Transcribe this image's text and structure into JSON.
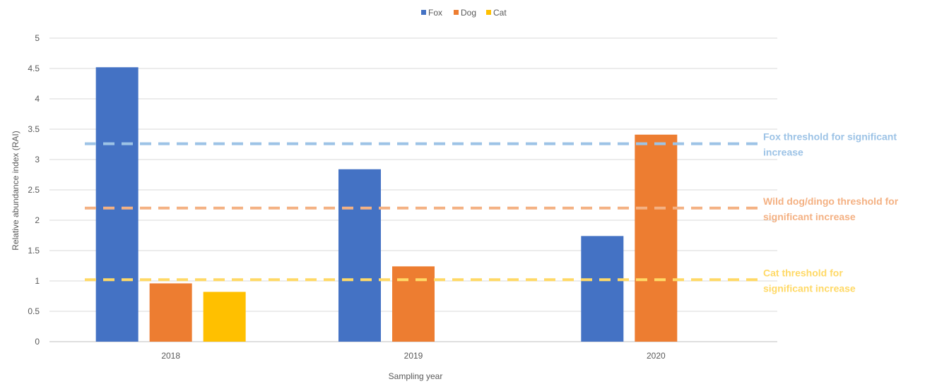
{
  "chart_data": {
    "type": "bar",
    "title": "",
    "xlabel": "Sampling year",
    "ylabel": "Relative abundance index (RAI)",
    "categories": [
      "2018",
      "2019",
      "2020"
    ],
    "ylim": [
      0,
      5
    ],
    "yticks": [
      0,
      0.5,
      1,
      1.5,
      2,
      2.5,
      3,
      3.5,
      4,
      4.5,
      5
    ],
    "ytick_labels": [
      "0",
      "0.5",
      "1",
      "1.5",
      "2",
      "2.5",
      "3",
      "3.5",
      "4",
      "4.5",
      "5"
    ],
    "grid": true,
    "legend_position": "top-center",
    "series": [
      {
        "name": "Fox",
        "color": "#4472C4",
        "values": [
          4.52,
          2.84,
          1.74
        ]
      },
      {
        "name": "Dog",
        "color": "#ED7D31",
        "values": [
          0.96,
          1.24,
          3.41
        ]
      },
      {
        "name": "Cat",
        "color": "#FFC000",
        "values": [
          0.82,
          null,
          null
        ]
      }
    ],
    "thresholds": [
      {
        "value": 3.26,
        "color": "#9DC3E6",
        "label_lines": [
          "Fox threshold for significant",
          "increase"
        ]
      },
      {
        "value": 2.2,
        "color": "#F4B183",
        "label_lines": [
          "Wild dog/dingo threshold for",
          "significant increase"
        ]
      },
      {
        "value": 1.02,
        "color": "#FFD966",
        "label_lines": [
          "Cat threshold for",
          "significant increase"
        ]
      }
    ]
  }
}
